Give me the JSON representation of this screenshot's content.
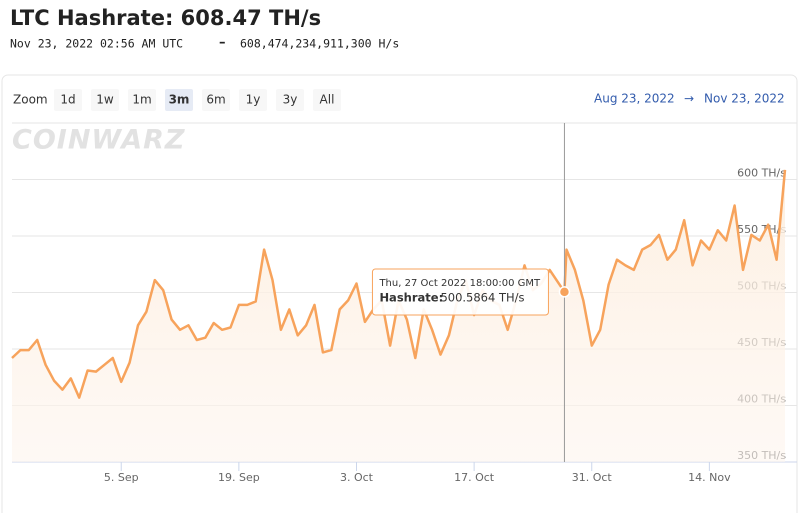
{
  "header": {
    "title": "LTC Hashrate: 608.47 TH/s",
    "timestamp": "Nov 23, 2022 02:56 AM UTC",
    "separator": "–",
    "raw_hashrate": "608,474,234,911,300 H/s"
  },
  "toolbar": {
    "zoom_label": "Zoom",
    "buttons": [
      "1d",
      "1w",
      "1m",
      "3m",
      "6m",
      "1y",
      "3y",
      "All"
    ],
    "selected": "3m",
    "range_from": "Aug 23, 2022",
    "range_arrow": "→",
    "range_to": "Nov 23, 2022"
  },
  "watermark": "COINWARZ",
  "chart_data": {
    "type": "area",
    "x": [
      "2022-08-23",
      "2022-08-24",
      "2022-08-25",
      "2022-08-26",
      "2022-08-27",
      "2022-08-28",
      "2022-08-29",
      "2022-08-30",
      "2022-08-31",
      "2022-09-01",
      "2022-09-02",
      "2022-09-03",
      "2022-09-04",
      "2022-09-05",
      "2022-09-06",
      "2022-09-07",
      "2022-09-08",
      "2022-09-09",
      "2022-09-10",
      "2022-09-11",
      "2022-09-12",
      "2022-09-13",
      "2022-09-14",
      "2022-09-15",
      "2022-09-16",
      "2022-09-17",
      "2022-09-18",
      "2022-09-19",
      "2022-09-20",
      "2022-09-21",
      "2022-09-22",
      "2022-09-23",
      "2022-09-24",
      "2022-09-25",
      "2022-09-26",
      "2022-09-27",
      "2022-09-28",
      "2022-09-29",
      "2022-09-30",
      "2022-10-01",
      "2022-10-02",
      "2022-10-03",
      "2022-10-04",
      "2022-10-05",
      "2022-10-06",
      "2022-10-07",
      "2022-10-08",
      "2022-10-09",
      "2022-10-10",
      "2022-10-11",
      "2022-10-12",
      "2022-10-13",
      "2022-10-14",
      "2022-10-15",
      "2022-10-16",
      "2022-10-17",
      "2022-10-18",
      "2022-10-19",
      "2022-10-20",
      "2022-10-21",
      "2022-10-22",
      "2022-10-23",
      "2022-10-24",
      "2022-10-25",
      "2022-10-26",
      "2022-10-27T18:00Z",
      "2022-10-28",
      "2022-10-29",
      "2022-10-30",
      "2022-10-31",
      "2022-11-01",
      "2022-11-02",
      "2022-11-03",
      "2022-11-04",
      "2022-11-05",
      "2022-11-06",
      "2022-11-07",
      "2022-11-08",
      "2022-11-09",
      "2022-11-10",
      "2022-11-11",
      "2022-11-12",
      "2022-11-13",
      "2022-11-14",
      "2022-11-15",
      "2022-11-16",
      "2022-11-17",
      "2022-11-18",
      "2022-11-19",
      "2022-11-20",
      "2022-11-21",
      "2022-11-22",
      "2022-11-23"
    ],
    "series": [
      {
        "name": "Hashrate",
        "color": "#f7a35c",
        "values": [
          442,
          449,
          449,
          458,
          436,
          422,
          414,
          424,
          407,
          431,
          430,
          436,
          442,
          421,
          438,
          471,
          483,
          511,
          502,
          476,
          467,
          471,
          458,
          460,
          473,
          467,
          469,
          489,
          489,
          492,
          538,
          511,
          467,
          485,
          462,
          471,
          489,
          447,
          449,
          485,
          493,
          508,
          474,
          485,
          493,
          453,
          493,
          476,
          442,
          485,
          467,
          445,
          462,
          493,
          511,
          480,
          502,
          493,
          489,
          467,
          493,
          524,
          502,
          508,
          520,
          500.5864,
          538,
          520,
          493,
          453,
          467,
          507,
          529,
          524,
          520,
          538,
          542,
          551,
          529,
          538,
          564,
          524,
          546,
          538,
          555,
          546,
          577,
          520,
          551,
          546,
          560,
          529,
          608.47
        ]
      }
    ],
    "xlim": [
      "2022-08-23",
      "2022-11-23"
    ],
    "xticks": [
      {
        "value": "2022-09-05",
        "label": "5. Sep"
      },
      {
        "value": "2022-09-19",
        "label": "19. Sep"
      },
      {
        "value": "2022-10-03",
        "label": "3. Oct"
      },
      {
        "value": "2022-10-17",
        "label": "17. Oct"
      },
      {
        "value": "2022-10-31",
        "label": "31. Oct"
      },
      {
        "value": "2022-11-14",
        "label": "14. Nov"
      }
    ],
    "ylim": [
      350,
      650
    ],
    "yticks": [
      {
        "value": 350,
        "label": "350 TH/s"
      },
      {
        "value": 400,
        "label": "400 TH/s"
      },
      {
        "value": 450,
        "label": "450 TH/s"
      },
      {
        "value": 500,
        "label": "500 TH/s"
      },
      {
        "value": 550,
        "label": "550 TH/s"
      },
      {
        "value": 600,
        "label": "600 TH/s"
      }
    ],
    "grid": true,
    "tooltip": {
      "title": "Thu, 27 Oct 2022 18:00:00 GMT",
      "name": "Hashrate:",
      "value_label": "500.5864 TH/s"
    }
  }
}
